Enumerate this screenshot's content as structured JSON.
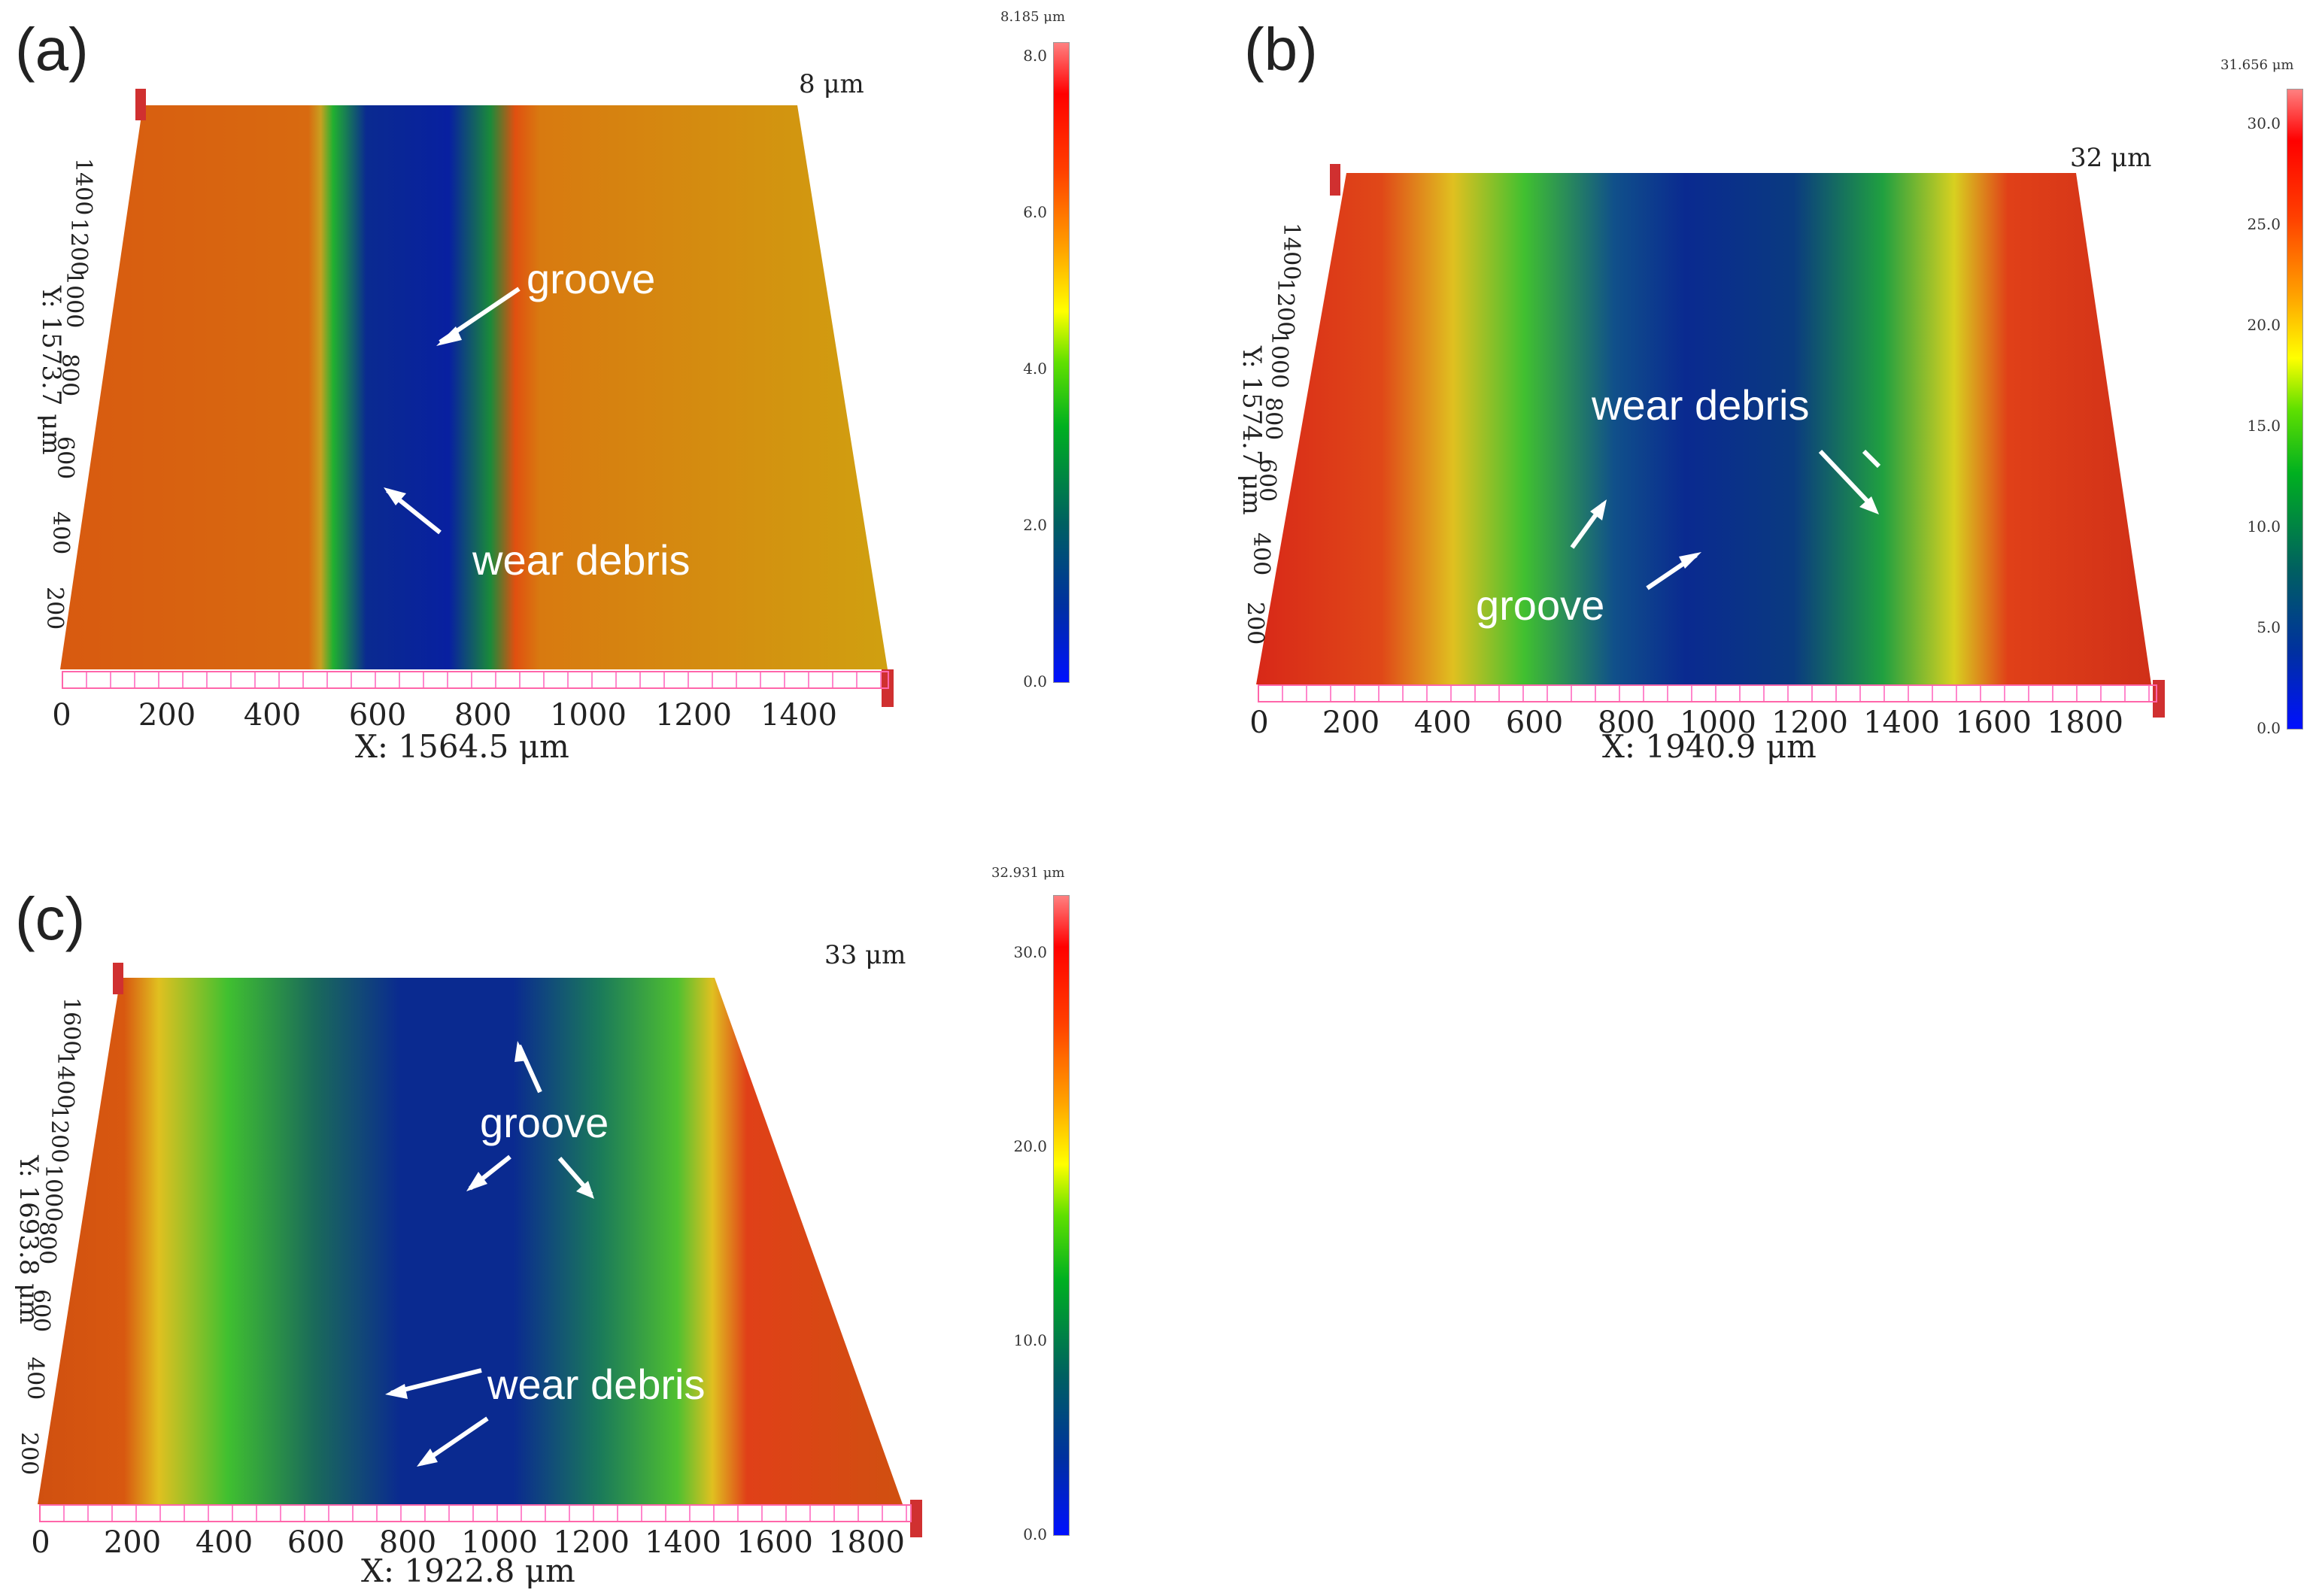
{
  "panels": {
    "a": {
      "label": "(a)",
      "z_label": "8 μm",
      "x_label": "X: 1564.5 μm",
      "y_label": "Y: 1573.7 μm",
      "x_ticks": [
        "0",
        "200",
        "400",
        "600",
        "800",
        "1000",
        "1200",
        "1400"
      ],
      "y_ticks": [
        "200",
        "400",
        "600",
        "800",
        "1000",
        "1200",
        "1400"
      ],
      "colorbar_max": "8.185 μm",
      "colorbar_ticks": [
        "0.0",
        "2.0",
        "4.0",
        "6.0",
        "8.0"
      ],
      "annotations": [
        "groove",
        "wear debris"
      ]
    },
    "b": {
      "label": "(b)",
      "z_label": "32 μm",
      "x_label": "X: 1940.9 μm",
      "y_label": "Y: 1574.7 μm",
      "x_ticks": [
        "0",
        "200",
        "400",
        "600",
        "800",
        "1000",
        "1200",
        "1400",
        "1600",
        "1800"
      ],
      "y_ticks": [
        "200",
        "400",
        "600",
        "800",
        "1000",
        "1200",
        "1400"
      ],
      "colorbar_max": "31.656 μm",
      "colorbar_ticks": [
        "0.0",
        "5.0",
        "10.0",
        "15.0",
        "20.0",
        "25.0",
        "30.0"
      ],
      "annotations": [
        "wear debris",
        "groove"
      ]
    },
    "c": {
      "label": "(c)",
      "z_label": "33 μm",
      "x_label": "X: 1922.8 μm",
      "y_label": "Y: 1693.8 μm",
      "x_ticks": [
        "0",
        "200",
        "400",
        "600",
        "800",
        "1000",
        "1200",
        "1400",
        "1600",
        "1800"
      ],
      "y_ticks": [
        "200",
        "400",
        "600",
        "800",
        "1000",
        "1200",
        "1400",
        "1600"
      ],
      "colorbar_max": "32.931 μm",
      "colorbar_ticks": [
        "0.0",
        "10.0",
        "20.0",
        "30.0"
      ],
      "annotations": [
        "groove",
        "wear debris"
      ]
    }
  }
}
